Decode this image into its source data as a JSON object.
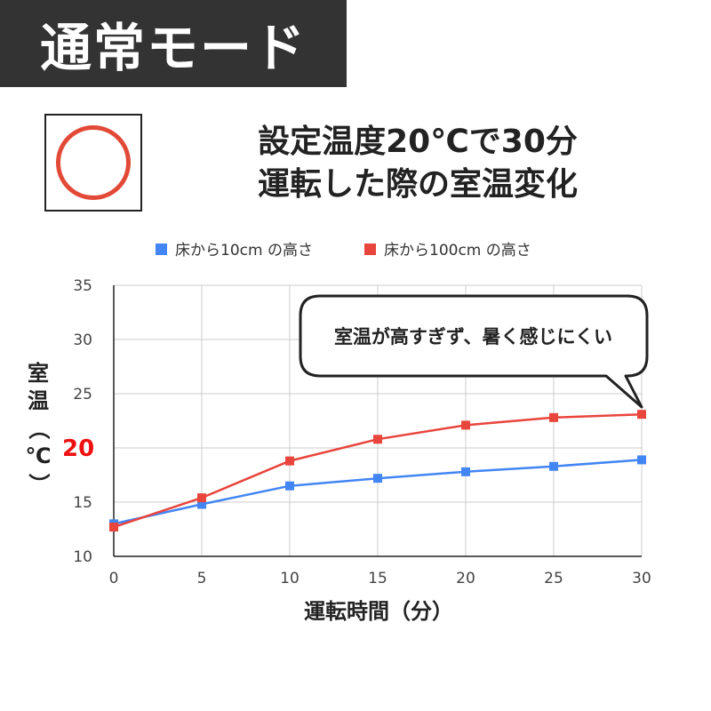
{
  "mode_label": "通常モード",
  "title": {
    "line1": "設定温度20℃で30分",
    "line2": "運転した際の室温変化"
  },
  "mark_icon": "circle-mark-icon",
  "colors": {
    "series_floor_10": "#4285f4",
    "series_floor_100": "#e8453c",
    "highlight": "#ee1111",
    "banner": "#333333"
  },
  "y_axis_highlight": "20",
  "callout": "室温が高すぎず、暑く感じにくい",
  "chart_data": {
    "type": "line",
    "x": [
      0,
      5,
      10,
      15,
      20,
      25,
      30
    ],
    "x_ticks": [
      "0",
      "5",
      "10",
      "15",
      "20",
      "25",
      "30"
    ],
    "y_ticks": [
      "10",
      "15",
      "25",
      "30",
      "35"
    ],
    "xlabel": "運転時間（分）",
    "ylabel": "室温（℃）",
    "ylim": [
      10,
      35
    ],
    "xlim": [
      0,
      30
    ],
    "grid": true,
    "legend_position": "top",
    "series": [
      {
        "name": "床から10cm の高さ",
        "values": [
          13.0,
          14.8,
          16.5,
          17.2,
          17.8,
          18.3,
          18.9
        ]
      },
      {
        "name": "床から100cm の高さ",
        "values": [
          12.7,
          15.4,
          18.8,
          20.8,
          22.1,
          22.8,
          23.1
        ]
      }
    ]
  }
}
